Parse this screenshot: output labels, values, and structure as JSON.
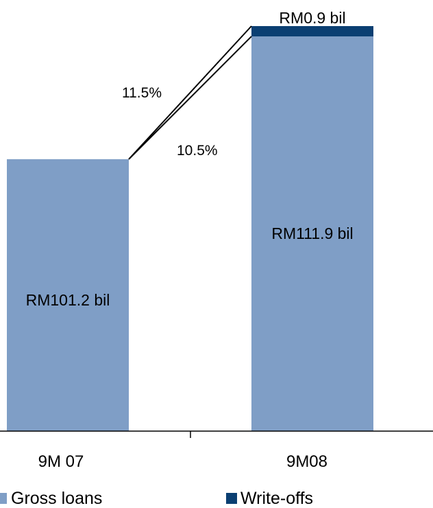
{
  "chart_data": {
    "type": "bar",
    "stacked": true,
    "categories": [
      "9M 07",
      "9M08"
    ],
    "series": [
      {
        "name": "Gross loans",
        "values": [
          101.2,
          111.9
        ],
        "color": "#7f9ec6"
      },
      {
        "name": "Write-offs",
        "values": [
          0,
          0.9
        ],
        "color": "#0b3f72"
      }
    ],
    "data_labels": {
      "gross": [
        "RM101.2 bil",
        "RM111.9 bil"
      ],
      "writeoff": "RM0.9 bil"
    },
    "growth_annotations": [
      {
        "label": "11.5%",
        "to": "total"
      },
      {
        "label": "10.5%",
        "to": "gross"
      }
    ],
    "legend": {
      "position": "bottom"
    },
    "grid": false
  }
}
